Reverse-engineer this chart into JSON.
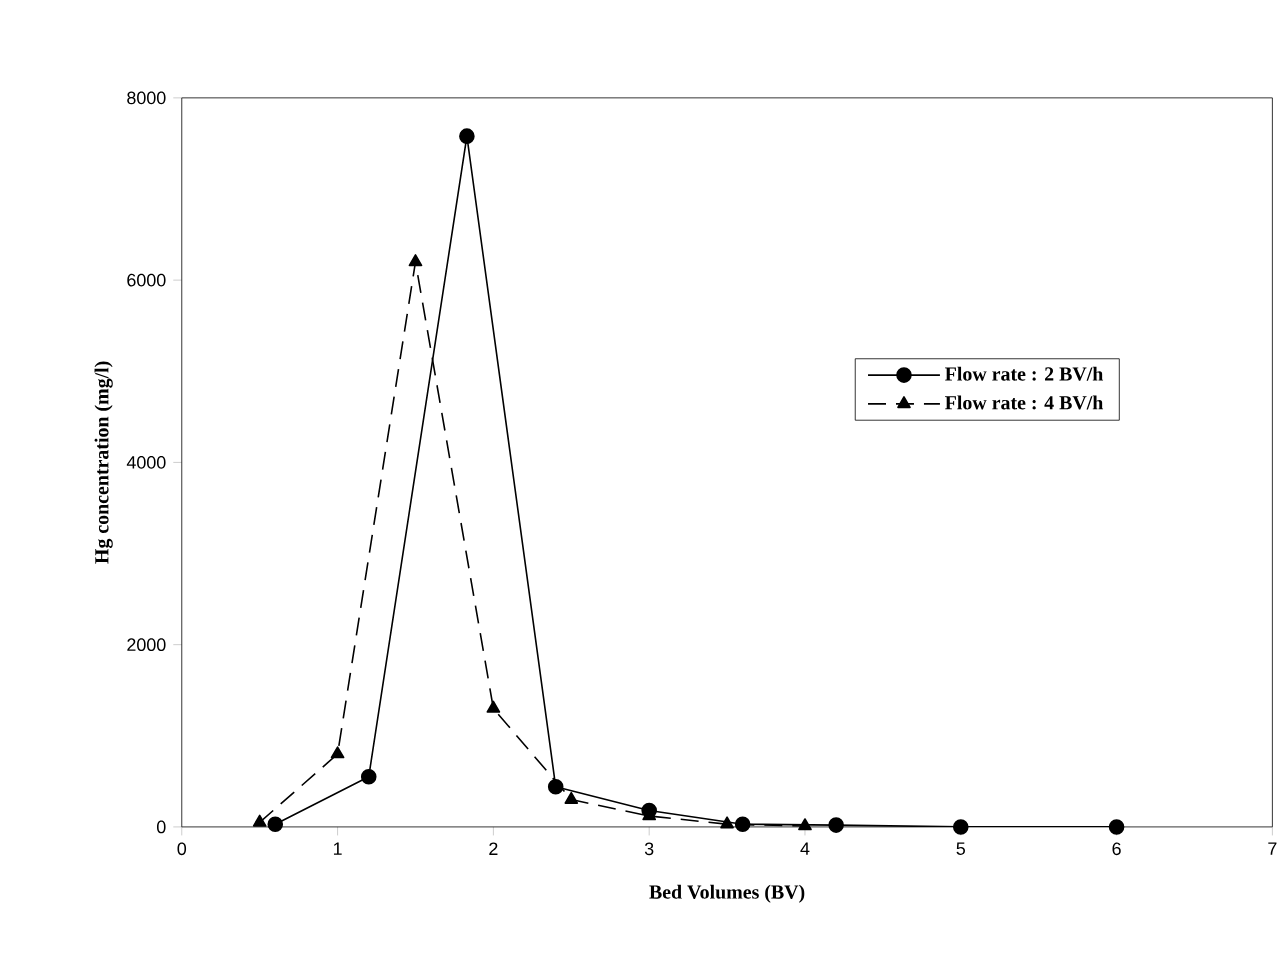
{
  "chart_data": {
    "type": "line",
    "xlabel": "Bed Volumes (BV)",
    "ylabel": "Hg concentration (mg/l)",
    "xlim": [
      0,
      7
    ],
    "ylim": [
      0,
      8000
    ],
    "xticks": [
      0,
      1,
      2,
      3,
      4,
      5,
      6,
      7
    ],
    "yticks": [
      0,
      2000,
      4000,
      6000,
      8000
    ],
    "grid": false,
    "legend": "right",
    "series": [
      {
        "name": "Flow rate : 2 BV/h",
        "color": "#000000",
        "marker": "circle",
        "line_style": "solid",
        "x": [
          0.6,
          1.2,
          1.83,
          2.4,
          3.0,
          3.6,
          4.2,
          5.0,
          6.0
        ],
        "values": [
          30,
          550,
          7580,
          440,
          180,
          30,
          20,
          0,
          0
        ]
      },
      {
        "name": "Flow rate : 4 BV/h",
        "color": "#000000",
        "marker": "triangle",
        "line_style": "dashed",
        "x": [
          0.5,
          1.0,
          1.5,
          2.0,
          2.5,
          3.0,
          3.5,
          4.0
        ],
        "values": [
          50,
          800,
          6200,
          1300,
          300,
          120,
          30,
          10
        ]
      }
    ]
  }
}
